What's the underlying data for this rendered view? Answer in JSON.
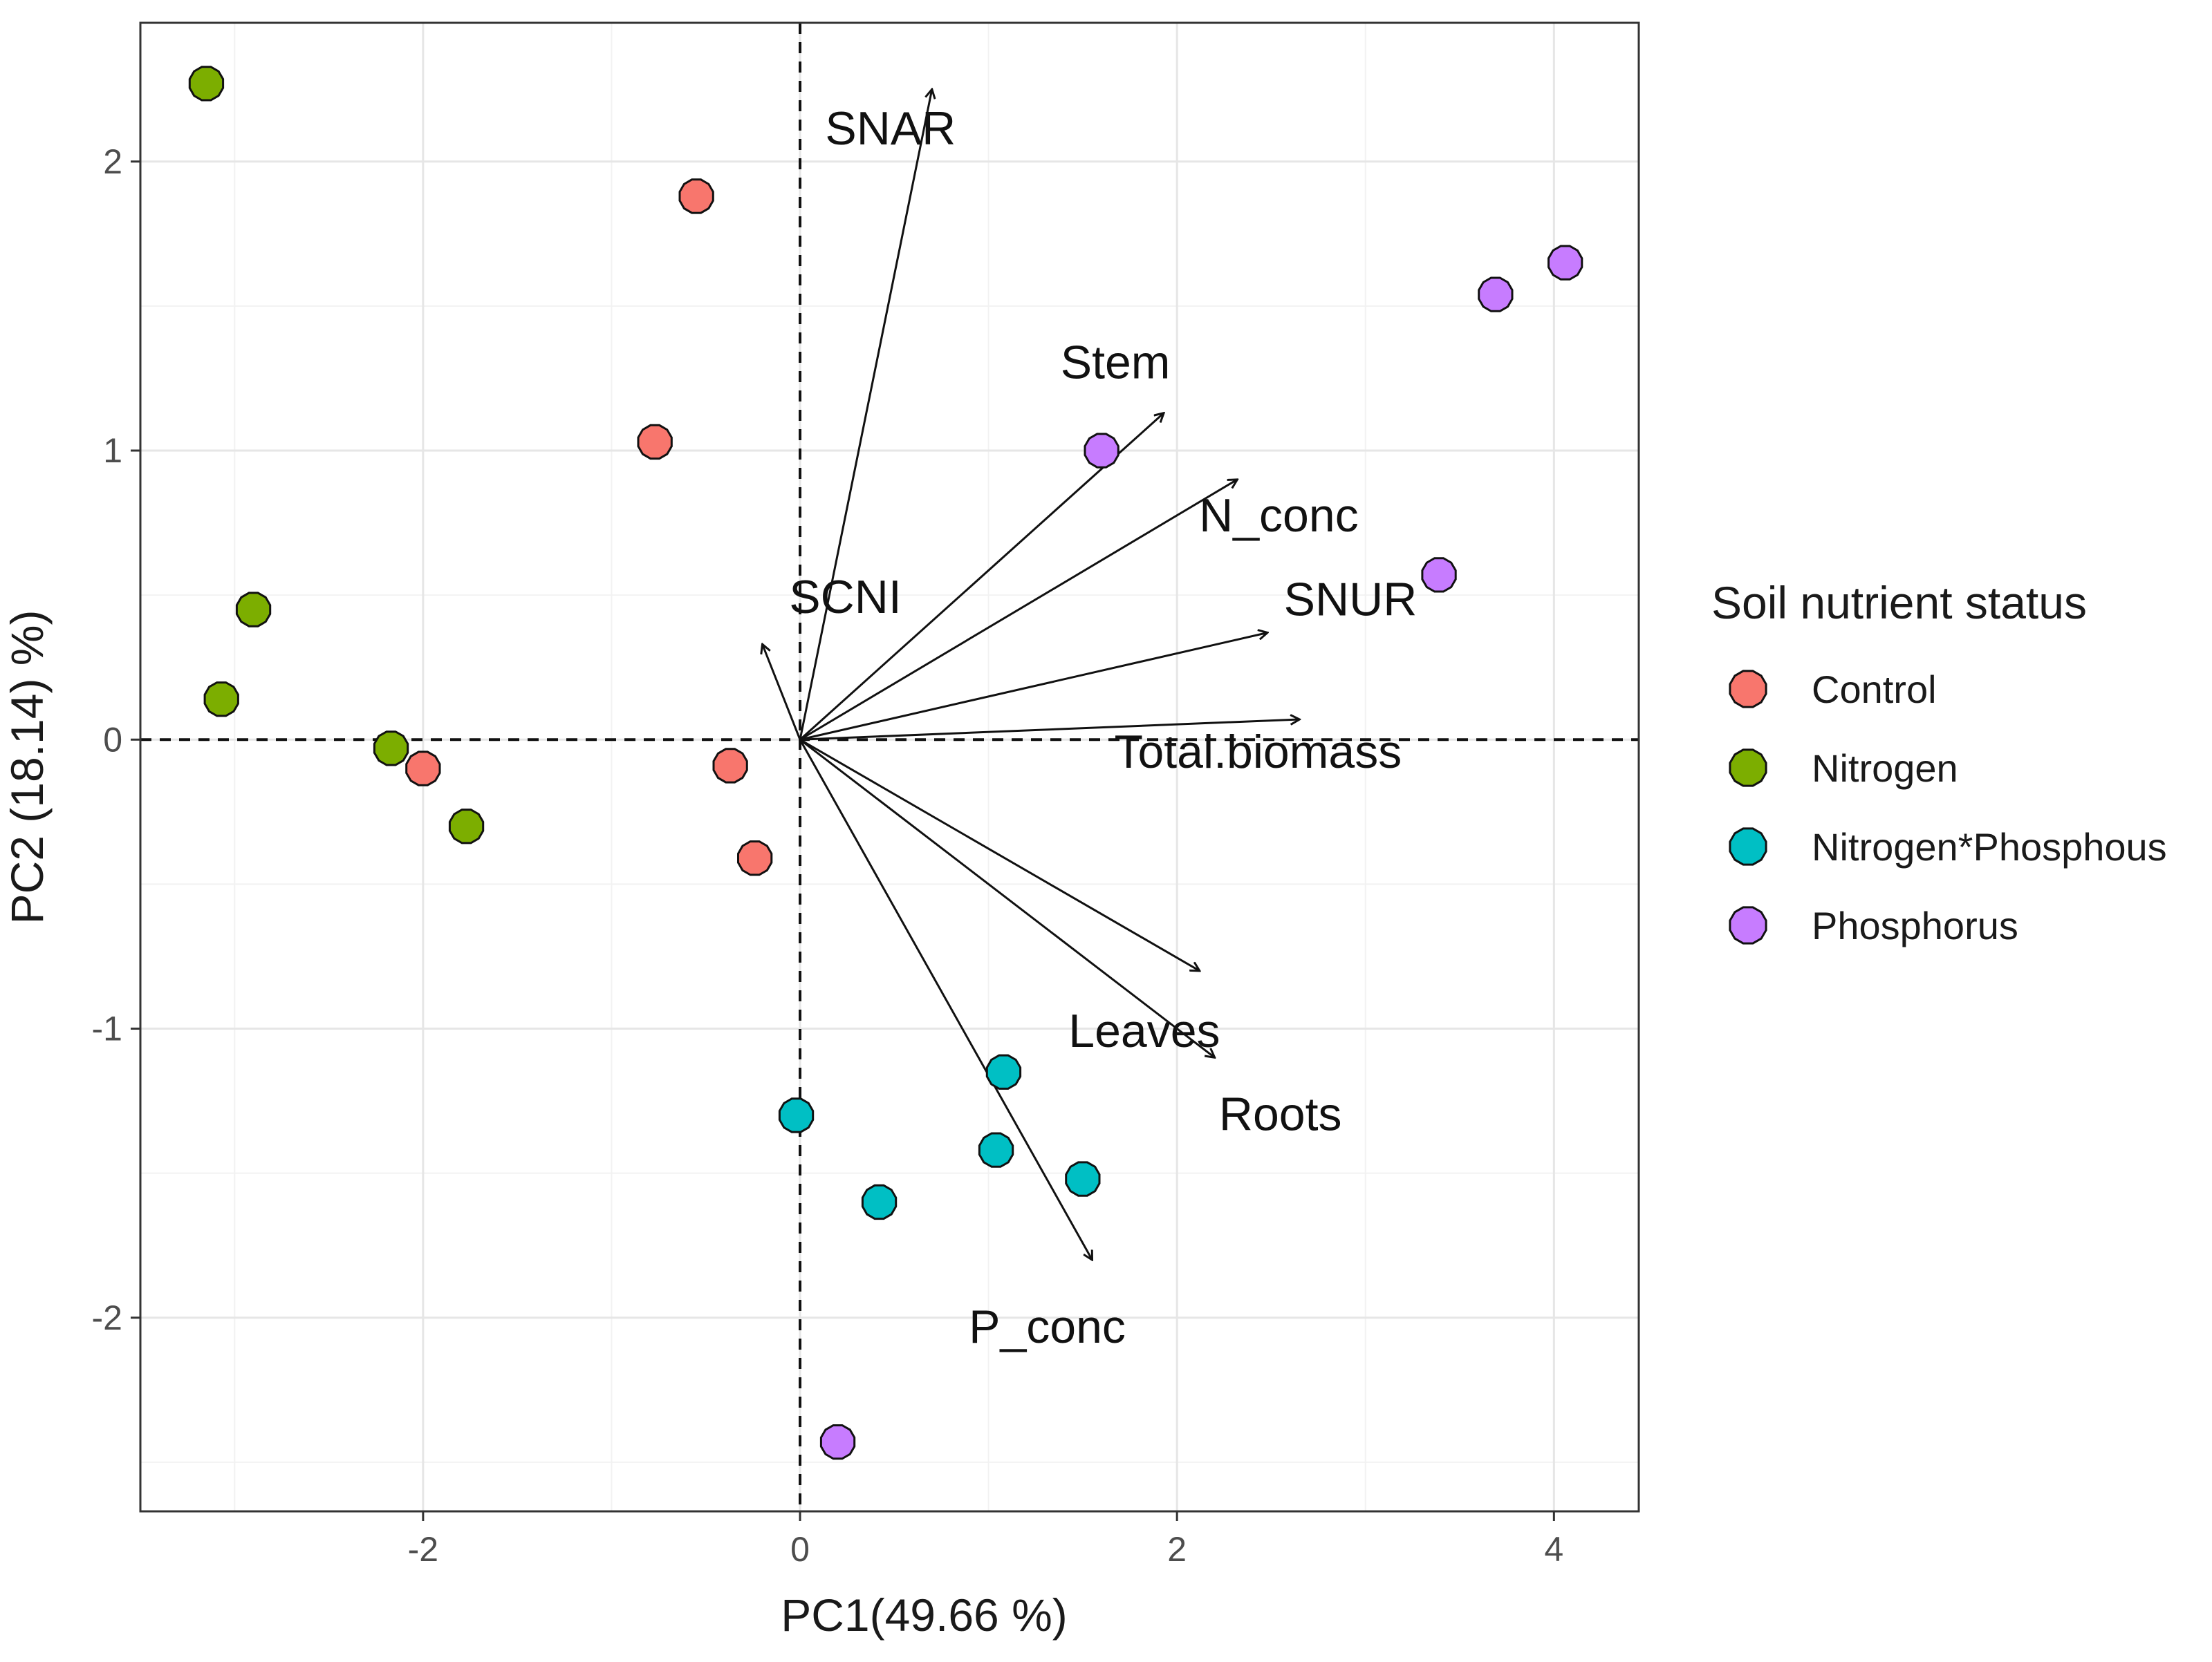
{
  "chart_data": {
    "type": "scatter",
    "subtype": "pca-biplot",
    "xlabel": "PC1(49.66 %)",
    "ylabel": "PC2 (18.14) %)",
    "xlim": [
      -3.5,
      4.45
    ],
    "ylim": [
      -2.67,
      2.48
    ],
    "xticks": [
      -2,
      0,
      2,
      4
    ],
    "yticks": [
      -2,
      -1,
      0,
      1,
      2
    ],
    "xtick_labels": [
      "-2",
      "0",
      "2",
      "4"
    ],
    "ytick_labels": [
      "-2",
      "-1",
      "0",
      "1",
      "2"
    ],
    "grid": true,
    "reference_lines": {
      "x": 0,
      "y": 0,
      "style": "dashed"
    },
    "legend": {
      "title": "Soil nutrient status",
      "position": "right"
    },
    "series": [
      {
        "name": "Control",
        "color": "#F8766D",
        "points": [
          {
            "x": -0.55,
            "y": 1.88
          },
          {
            "x": -0.77,
            "y": 1.03
          },
          {
            "x": -2.0,
            "y": -0.1
          },
          {
            "x": -0.37,
            "y": -0.09
          },
          {
            "x": -0.24,
            "y": -0.41
          }
        ]
      },
      {
        "name": "Nitrogen",
        "color": "#7CAE00",
        "points": [
          {
            "x": -3.15,
            "y": 2.27
          },
          {
            "x": -2.9,
            "y": 0.45
          },
          {
            "x": -3.07,
            "y": 0.14
          },
          {
            "x": -2.17,
            "y": -0.03
          },
          {
            "x": -1.77,
            "y": -0.3
          }
        ]
      },
      {
        "name": "Nitrogen*Phosphous",
        "color": "#00BFC4",
        "points": [
          {
            "x": -0.02,
            "y": -1.3
          },
          {
            "x": 0.42,
            "y": -1.6
          },
          {
            "x": 1.08,
            "y": -1.15
          },
          {
            "x": 1.04,
            "y": -1.42
          },
          {
            "x": 1.5,
            "y": -1.52
          }
        ]
      },
      {
        "name": "Phosphorus",
        "color": "#C77CFF",
        "points": [
          {
            "x": 1.6,
            "y": 1.0
          },
          {
            "x": 3.39,
            "y": 0.57
          },
          {
            "x": 3.69,
            "y": 1.54
          },
          {
            "x": 4.06,
            "y": 1.65
          },
          {
            "x": 0.2,
            "y": -2.43
          }
        ]
      }
    ],
    "loadings": [
      {
        "name": "SNAR",
        "x": 0.7,
        "y": 2.25
      },
      {
        "name": "Stem",
        "x": 1.93,
        "y": 1.13
      },
      {
        "name": "N_conc",
        "x": 2.32,
        "y": 0.9
      },
      {
        "name": "SNUR",
        "x": 2.48,
        "y": 0.37
      },
      {
        "name": "SCNI",
        "x": -0.2,
        "y": 0.33
      },
      {
        "name": "Total.biomass",
        "x": 2.65,
        "y": 0.07
      },
      {
        "name": "Leaves",
        "x": 2.12,
        "y": -0.8
      },
      {
        "name": "Roots",
        "x": 2.2,
        "y": -1.1
      },
      {
        "name": "P_conc",
        "x": 1.55,
        "y": -1.8
      }
    ]
  }
}
